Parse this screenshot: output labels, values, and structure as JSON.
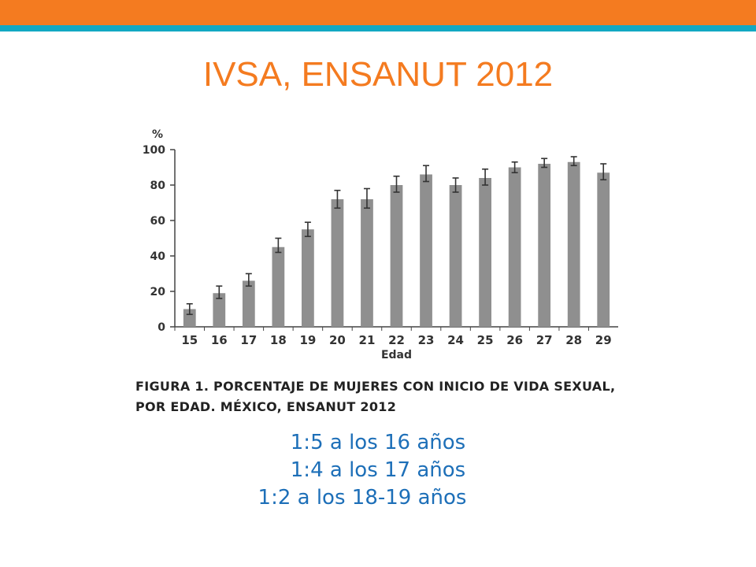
{
  "slide": {
    "title": "IVSA, ENSANUT 2012",
    "caption_line1": "Figura 1. Porcentaje de mujeres con inicio de vida sexual,",
    "caption_line2": "por edad. México, ENSANUT 2012",
    "notes": [
      "1:5 a los 16 años",
      "1:4 a los 17 años",
      "1:2 a los 18-19 años"
    ]
  },
  "colors": {
    "accent_orange": "#f47b20",
    "accent_teal": "#13a8c2",
    "bar": "#8f8f8f",
    "notes_blue": "#1d6fb8"
  },
  "chart_data": {
    "type": "bar",
    "ylabel": "%",
    "xlabel": "Edad",
    "ylim": [
      0,
      100
    ],
    "yticks": [
      0,
      20,
      40,
      60,
      80,
      100
    ],
    "categories": [
      "15",
      "16",
      "17",
      "18",
      "19",
      "20",
      "21",
      "22",
      "23",
      "24",
      "25",
      "26",
      "27",
      "28",
      "29"
    ],
    "values": [
      10,
      19,
      26,
      45,
      55,
      72,
      72,
      80,
      86,
      80,
      84,
      90,
      92,
      93,
      87
    ],
    "error_low": [
      7,
      16,
      23,
      42,
      51,
      67,
      67,
      76,
      82,
      76,
      80,
      87,
      90,
      91,
      83
    ],
    "error_high": [
      13,
      23,
      30,
      50,
      59,
      77,
      78,
      85,
      91,
      84,
      89,
      93,
      95,
      96,
      92
    ],
    "grid": false
  }
}
